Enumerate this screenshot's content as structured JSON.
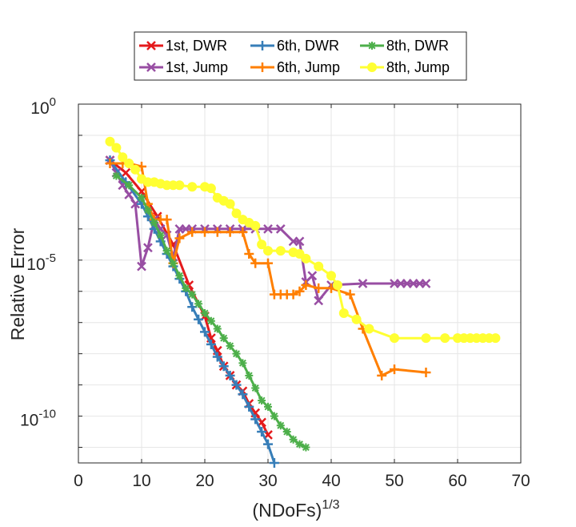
{
  "chart_data": {
    "type": "line",
    "title": "",
    "xlabel": "(NDoFs)",
    "xlabel_superscript": "1/3",
    "ylabel": "Relative Error",
    "x_ticks": [
      "0",
      "10",
      "20",
      "30",
      "40",
      "50",
      "60",
      "70"
    ],
    "y_ticks": [
      {
        "base": "10",
        "exp": "0"
      },
      {
        "base": "10",
        "exp": "-5"
      },
      {
        "base": "10",
        "exp": "-10"
      }
    ],
    "xlim": [
      0,
      70
    ],
    "ylim_log10": [
      -11.5,
      0
    ],
    "y_scale": "log",
    "grid": "on",
    "legend_placement": "top, outside (2 rows × 3 columns)",
    "series": [
      {
        "name": "1st, DWR",
        "color": "#e41a1c",
        "marker": "x",
        "x": [
          5,
          7.5,
          10,
          12.5,
          15,
          17.5,
          20,
          21,
          22,
          23,
          24,
          25,
          26,
          27,
          28,
          29,
          30
        ],
        "y": [
          -1.8,
          -2.2,
          -2.8,
          -3.6,
          -4.5,
          -5.8,
          -6.8,
          -7.5,
          -7.9,
          -8.4,
          -8.7,
          -9.0,
          -9.2,
          -9.6,
          -9.9,
          -10.2,
          -10.6
        ]
      },
      {
        "name": "1st, Jump",
        "color": "#984ea3",
        "marker": "x",
        "x": [
          5,
          6,
          7,
          8,
          9,
          10,
          11,
          12,
          13,
          14,
          15,
          16,
          17,
          18,
          20,
          22,
          24,
          26,
          28,
          30,
          32,
          34,
          35,
          36,
          37,
          38,
          40,
          45,
          50,
          51,
          52,
          53,
          54,
          55
        ],
        "y": [
          -1.8,
          -2.2,
          -2.6,
          -2.9,
          -3.2,
          -5.2,
          -4.6,
          -3.7,
          -4.0,
          -4.2,
          -4.9,
          -4.0,
          -4.0,
          -4.0,
          -4.0,
          -4.0,
          -4.0,
          -4.0,
          -4.0,
          -4.0,
          -4.0,
          -4.4,
          -4.4,
          -5.7,
          -5.5,
          -6.3,
          -5.8,
          -5.75,
          -5.75,
          -5.75,
          -5.75,
          -5.75,
          -5.75,
          -5.75
        ]
      },
      {
        "name": "6th, DWR",
        "color": "#377eb8",
        "marker": "+",
        "x": [
          5,
          7.5,
          10,
          11,
          12,
          13,
          14,
          15,
          16,
          17,
          18,
          19,
          20,
          21,
          22,
          23,
          24,
          25,
          26,
          27,
          28,
          29,
          30,
          31
        ],
        "y": [
          -1.8,
          -2.5,
          -3.2,
          -3.6,
          -4.0,
          -4.4,
          -4.8,
          -5.2,
          -5.6,
          -6.0,
          -6.5,
          -6.9,
          -7.3,
          -7.7,
          -8.1,
          -8.4,
          -8.7,
          -9.0,
          -9.3,
          -9.7,
          -10.1,
          -10.5,
          -10.9,
          -11.5
        ]
      },
      {
        "name": "6th, Jump",
        "color": "#ff7f00",
        "marker": "+",
        "x": [
          5,
          7,
          8,
          10,
          11,
          12,
          13,
          14,
          15,
          16,
          18,
          20,
          22,
          24,
          26,
          27,
          28,
          30,
          31,
          32,
          33,
          34,
          35,
          36,
          38,
          40,
          43,
          45,
          48,
          50,
          55
        ],
        "y": [
          -1.9,
          -1.9,
          -1.9,
          -2.0,
          -3.2,
          -3.7,
          -3.7,
          -3.7,
          -5.1,
          -4.3,
          -4.1,
          -4.1,
          -4.1,
          -4.1,
          -4.1,
          -4.8,
          -5.1,
          -5.1,
          -6.1,
          -6.1,
          -6.1,
          -6.1,
          -6.0,
          -5.8,
          -5.9,
          -5.9,
          -6.1,
          -7.2,
          -8.7,
          -8.5,
          -8.6
        ]
      },
      {
        "name": "8th, DWR",
        "color": "#4daf4a",
        "marker": "*",
        "x": [
          6,
          8,
          10,
          11,
          12,
          13,
          14,
          15,
          16,
          17,
          18,
          19,
          20,
          21,
          22,
          23,
          24,
          25,
          26,
          27,
          28,
          29,
          30,
          31,
          32,
          33,
          34,
          35,
          36
        ],
        "y": [
          -2.3,
          -2.6,
          -3.0,
          -3.4,
          -3.8,
          -4.2,
          -4.7,
          -5.1,
          -5.5,
          -5.9,
          -6.1,
          -6.4,
          -6.7,
          -6.95,
          -7.2,
          -7.5,
          -7.75,
          -8.0,
          -8.3,
          -8.7,
          -9.1,
          -9.5,
          -9.7,
          -10.0,
          -10.3,
          -10.5,
          -10.75,
          -10.9,
          -11.0
        ]
      },
      {
        "name": "8th, Jump",
        "color": "#ffff33",
        "marker": "o",
        "x": [
          5,
          6,
          7,
          8,
          9,
          10,
          11,
          12,
          13,
          14,
          15,
          16,
          18,
          20,
          21,
          22,
          23,
          24,
          25,
          26,
          27,
          28,
          29,
          30,
          32,
          34,
          35,
          36,
          38,
          40,
          41,
          42,
          44,
          46,
          50,
          55,
          58,
          60,
          61,
          62,
          63,
          64,
          65,
          66
        ],
        "y": [
          -1.2,
          -1.4,
          -1.7,
          -1.9,
          -2.1,
          -2.4,
          -2.5,
          -2.5,
          -2.55,
          -2.6,
          -2.6,
          -2.6,
          -2.65,
          -2.65,
          -2.7,
          -3.0,
          -3.1,
          -3.2,
          -3.5,
          -3.7,
          -3.8,
          -3.9,
          -4.5,
          -4.7,
          -4.7,
          -4.75,
          -4.8,
          -4.95,
          -5.2,
          -5.5,
          -5.8,
          -6.7,
          -6.9,
          -7.2,
          -7.5,
          -7.5,
          -7.5,
          -7.5,
          -7.5,
          -7.5,
          -7.5,
          -7.5,
          -7.5,
          -7.5
        ]
      }
    ]
  }
}
